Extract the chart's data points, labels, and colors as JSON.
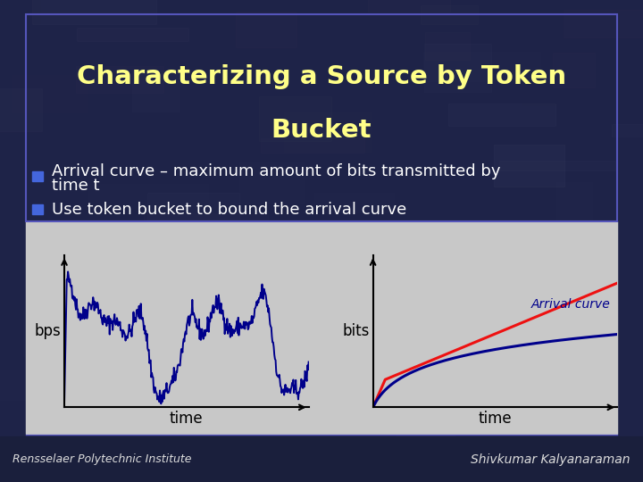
{
  "title_line1": "Characterizing a Source by Token",
  "title_line2": "Bucket",
  "title_color": "#FFFF88",
  "title_fontsize": 21,
  "bullet1_line1": "Arrival curve – maximum amount of bits transmitted by",
  "bullet1_line2": "time t",
  "bullet2": "Use token bucket to bound the arrival curve",
  "bullet_color": "#FFFFFF",
  "bullet_fontsize": 13,
  "bullet_marker_color": "#4466DD",
  "plot_bg_color": "#C8C8C8",
  "outer_bg_color": "#C0C0C8",
  "left_ylabel": "bps",
  "left_xlabel": "time",
  "right_ylabel": "bits",
  "right_xlabel": "time",
  "arrival_curve_label": "Arrival curve",
  "left_line_color": "#00008B",
  "right_dark_color": "#00008B",
  "right_red_color": "#EE1111",
  "footer_left": "Rensselaer Polytechnic Institute",
  "footer_right": "Shivkumar Kalyanaraman",
  "footer_color": "#DDDDDD",
  "footer_fontsize": 9,
  "border_color": "#5555BB",
  "slide_bg": "#1E2348",
  "footer_bg": "#1A1F3C"
}
